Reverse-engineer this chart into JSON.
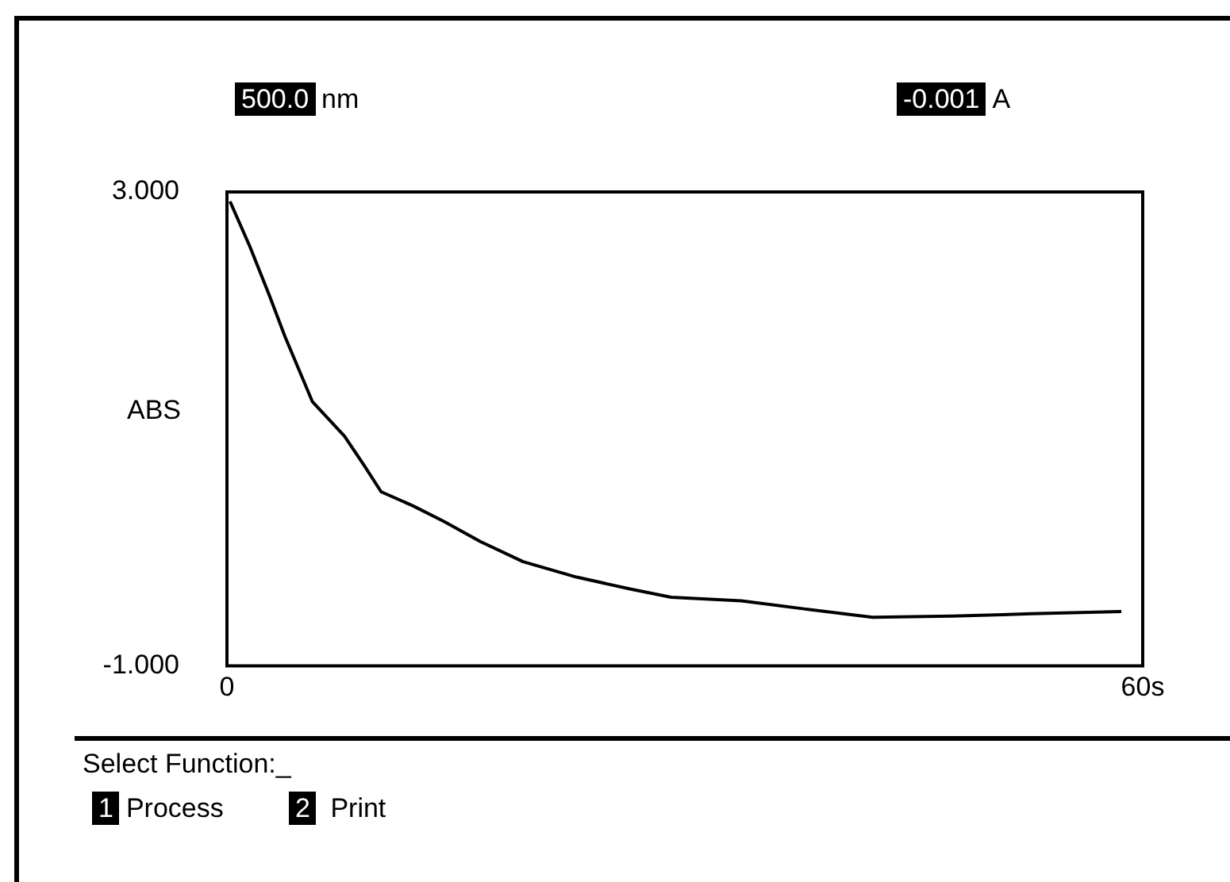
{
  "chart_data": {
    "type": "line",
    "ylabel": "ABS",
    "annotations": [
      "500.0 nm",
      "-0.001 A",
      "Select Function:_",
      "1 Process",
      "2  Print"
    ],
    "x": [
      0.2,
      1.5,
      2.8,
      3.8,
      5.6,
      7.7,
      9.0,
      10.1,
      12.2,
      14.2,
      16.6,
      19.4,
      22.9,
      26.4,
      29.1,
      33.7,
      37.9,
      42.3,
      47.5,
      52.7,
      58.6
    ],
    "series": [
      {
        "color": "#000000",
        "values": [
          2.92,
          2.54,
          2.12,
          1.78,
          1.23,
          0.94,
          0.69,
          0.47,
          0.35,
          0.22,
          0.05,
          -0.12,
          -0.25,
          -0.35,
          -0.42,
          -0.45,
          -0.52,
          -0.59,
          -0.58,
          -0.56,
          -0.54
        ]
      }
    ],
    "xlim": [
      0,
      60
    ],
    "xticks": [
      0,
      {
        "value": 60,
        "label": "60s"
      }
    ],
    "ylim": [
      -1,
      3
    ],
    "yticks": [
      {
        "value": 3,
        "label": "3.000"
      },
      {
        "value": -1,
        "label": "-1.000"
      }
    ],
    "legend": false,
    "marker": "none",
    "line_style": "solid"
  }
}
